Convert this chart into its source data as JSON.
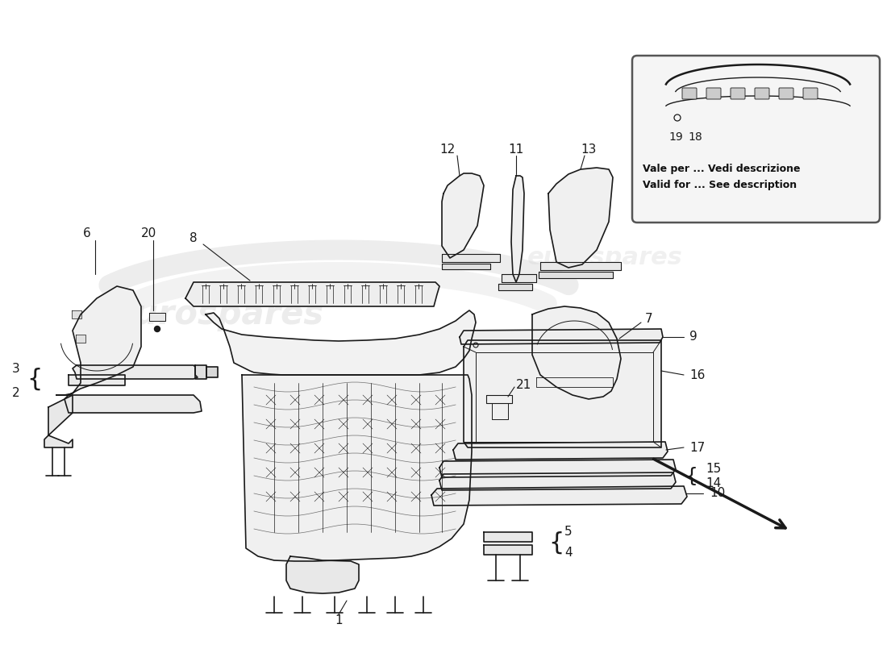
{
  "bg_color": "#ffffff",
  "line_color": "#1a1a1a",
  "watermark": "eurospares",
  "watermark_color": "#d0d0d0",
  "inset_text_line1": "Vale per ... Vedi descrizione",
  "inset_text_line2": "Valid for ... See description",
  "fig_width": 11.0,
  "fig_height": 8.0,
  "dpi": 100
}
